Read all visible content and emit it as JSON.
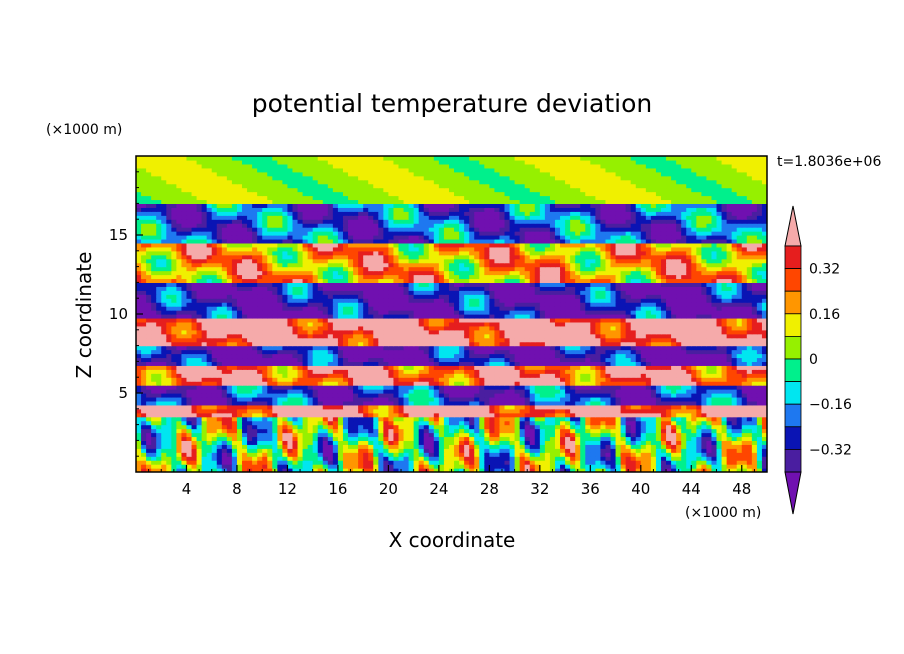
{
  "chart_data": {
    "type": "heatmap",
    "title": "potential temperature deviation",
    "xlabel": "X coordinate",
    "ylabel": "Z coordinate",
    "x_unit": "(×1000 m)",
    "y_unit": "(×1000 m)",
    "time_label": "t=1.8036e+06",
    "xlim": [
      0,
      50
    ],
    "ylim": [
      0,
      20
    ],
    "x_ticks": [
      4,
      8,
      12,
      16,
      20,
      24,
      28,
      32,
      36,
      40,
      44,
      48
    ],
    "y_ticks": [
      5,
      10,
      15
    ],
    "colorbar": {
      "levels": [
        -0.4,
        -0.32,
        -0.24,
        -0.16,
        -0.08,
        0,
        0.08,
        0.16,
        0.24,
        0.32,
        0.4
      ],
      "labels": [
        "0.32",
        "0.16",
        "0",
        "−0.16",
        "−0.32"
      ],
      "label_values": [
        0.32,
        0.16,
        0,
        -0.16,
        -0.32
      ],
      "colors": [
        "#7010B0",
        "#4A1EA0",
        "#0A14B4",
        "#1E78F0",
        "#00E6F0",
        "#00F08C",
        "#96F000",
        "#F0F000",
        "#FF9600",
        "#FF4600",
        "#E61E1E",
        "#F5AAAA"
      ]
    },
    "field_layers": [
      {
        "z_range": [
          17,
          20
        ],
        "value": 0.03
      },
      {
        "z_range": [
          14.5,
          17
        ],
        "value": -0.25
      },
      {
        "z_range": [
          12,
          14.5
        ],
        "value": 0.2
      },
      {
        "z_range": [
          9.8,
          12
        ],
        "value": -0.36
      },
      {
        "z_range": [
          8,
          9.8
        ],
        "value": 0.45
      },
      {
        "z_range": [
          6.8,
          8
        ],
        "value": -0.38
      },
      {
        "z_range": [
          5.5,
          6.8
        ],
        "value": 0.35
      },
      {
        "z_range": [
          4.2,
          5.5
        ],
        "value": -0.3
      },
      {
        "z_range": [
          3.6,
          4.2
        ],
        "value": 0.42
      },
      {
        "z_range": [
          0,
          3.6
        ],
        "value": 0.0
      }
    ]
  }
}
